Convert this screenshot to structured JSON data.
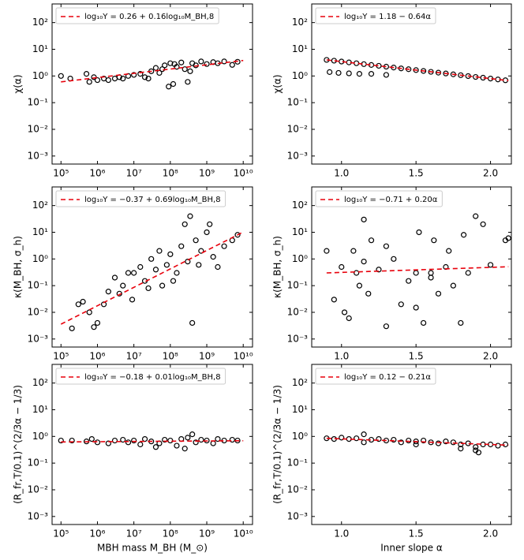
{
  "chart_data": [
    {
      "type": "scatter",
      "ylabel": "χ(α)",
      "log_x": true,
      "log_y": true,
      "legend": "upper left",
      "xlim": [
        57000,
        18000000000
      ],
      "ylim": [
        0.0005,
        500
      ],
      "xticks": [
        {
          "value": 100000,
          "label": "10⁵"
        },
        {
          "value": 1000000,
          "label": "10⁶"
        },
        {
          "value": 10000000,
          "label": "10⁷"
        },
        {
          "value": 100000000,
          "label": "10⁸"
        },
        {
          "value": 1000000000,
          "label": "10⁹"
        },
        {
          "value": 10000000000,
          "label": "10¹⁰"
        }
      ],
      "yticks": [
        {
          "value": 0.001,
          "label": "10⁻³"
        },
        {
          "value": 0.01,
          "label": "10⁻²"
        },
        {
          "value": 0.1,
          "label": "10⁻¹"
        },
        {
          "value": 1,
          "label": "10⁰"
        },
        {
          "value": 10,
          "label": "10¹"
        },
        {
          "value": 100,
          "label": "10²"
        }
      ],
      "series": [
        {
          "type": "scatter",
          "color": "#000000",
          "x": [
            100000,
            180000,
            500000,
            600000,
            800000,
            1000000,
            1500000,
            2000000,
            3000000,
            4000000,
            5000000,
            7000000,
            10000000,
            15000000,
            20000000,
            30000000,
            40000000,
            50000000,
            70000000,
            100000000,
            120000000,
            150000000,
            200000000,
            250000000,
            300000000,
            400000000,
            500000000,
            700000000,
            1000000000,
            1500000000,
            2000000000,
            3000000000,
            5000000000,
            7000000000,
            25000000,
            60000000,
            90000000,
            130000000,
            350000000
          ],
          "values": [
            1.0,
            0.8,
            1.2,
            0.6,
            0.9,
            0.7,
            0.8,
            0.7,
            0.8,
            0.9,
            0.8,
            1.0,
            1.1,
            1.2,
            0.9,
            1.5,
            2.0,
            1.3,
            2.5,
            3.0,
            0.5,
            2.2,
            3.2,
            1.8,
            0.6,
            3.0,
            2.5,
            3.5,
            2.8,
            3.3,
            3.0,
            3.5,
            2.6,
            3.4,
            0.8,
            1.8,
            0.4,
            2.8,
            1.5
          ]
        },
        {
          "type": "line",
          "name": "log₁₀Y = 0.26 + 0.16log₁₀M_BH,8",
          "color": "#e8000b",
          "x": [
            100000,
            10000000000
          ],
          "values": [
            0.6,
            3.8
          ]
        }
      ]
    },
    {
      "type": "scatter",
      "ylabel": "χ(α)",
      "log_x": false,
      "log_y": true,
      "legend": "upper left",
      "xlim": [
        0.8,
        2.14
      ],
      "ylim": [
        0.0005,
        500
      ],
      "xticks": [
        {
          "value": 1,
          "label": "1.0"
        },
        1.5,
        {
          "value": 2,
          "label": "2.0"
        }
      ],
      "yticks": [
        {
          "value": 0.001,
          "label": "10⁻³"
        },
        {
          "value": 0.01,
          "label": "10⁻²"
        },
        {
          "value": 0.1,
          "label": "10⁻¹"
        },
        {
          "value": 1,
          "label": "10⁰"
        },
        {
          "value": 10,
          "label": "10¹"
        },
        {
          "value": 100,
          "label": "10²"
        }
      ],
      "series": [
        {
          "type": "scatter",
          "color": "#000000",
          "x": [
            0.9,
            0.95,
            1.0,
            1.05,
            1.1,
            1.15,
            1.2,
            1.25,
            1.3,
            1.35,
            1.4,
            1.45,
            1.5,
            1.55,
            1.6,
            1.65,
            1.7,
            1.75,
            1.8,
            1.85,
            1.9,
            1.95,
            2.0,
            2.05,
            2.1,
            0.92,
            0.98,
            1.05,
            1.12,
            1.2,
            1.3
          ],
          "values": [
            4.0,
            3.74,
            3.47,
            3.22,
            3.0,
            2.78,
            2.58,
            2.4,
            2.23,
            2.07,
            1.92,
            1.79,
            1.66,
            1.54,
            1.43,
            1.33,
            1.24,
            1.15,
            1.07,
            0.99,
            0.92,
            0.86,
            0.8,
            0.74,
            0.69,
            1.4,
            1.3,
            1.25,
            1.2,
            1.2,
            1.1
          ]
        },
        {
          "type": "line",
          "name": "log₁₀Y = 1.18 − 0.64α",
          "color": "#e8000b",
          "x": [
            0.9,
            2.12
          ],
          "values": [
            4.0,
            0.67
          ]
        }
      ]
    },
    {
      "type": "scatter",
      "ylabel": "κ(M_BH, σ_h)",
      "log_x": true,
      "log_y": true,
      "legend": "upper left",
      "xlim": [
        57000,
        18000000000
      ],
      "ylim": [
        0.0005,
        500
      ],
      "xticks": [
        {
          "value": 100000,
          "label": "10⁵"
        },
        {
          "value": 1000000,
          "label": "10⁶"
        },
        {
          "value": 10000000,
          "label": "10⁷"
        },
        {
          "value": 100000000,
          "label": "10⁸"
        },
        {
          "value": 1000000000,
          "label": "10⁹"
        },
        {
          "value": 10000000000,
          "label": "10¹⁰"
        }
      ],
      "yticks": [
        {
          "value": 0.001,
          "label": "10⁻³"
        },
        {
          "value": 0.01,
          "label": "10⁻²"
        },
        {
          "value": 0.1,
          "label": "10⁻¹"
        },
        {
          "value": 1,
          "label": "10⁰"
        },
        {
          "value": 10,
          "label": "10¹"
        },
        {
          "value": 100,
          "label": "10²"
        }
      ],
      "series": [
        {
          "type": "scatter",
          "color": "#000000",
          "x": [
            200000,
            300000,
            400000,
            600000,
            800000,
            1000000,
            1500000,
            2000000,
            3000000,
            4000000,
            5000000,
            7000000,
            10000000,
            15000000,
            20000000,
            30000000,
            40000000,
            50000000,
            60000000,
            80000000,
            100000000,
            150000000,
            200000000,
            300000000,
            400000000,
            500000000,
            700000000,
            1000000000,
            1500000000,
            2000000000,
            3000000000,
            5000000000,
            7000000000,
            9000000,
            25000000,
            120000000,
            250000000,
            350000000,
            600000000,
            1200000000
          ],
          "values": [
            0.0025,
            0.02,
            0.025,
            0.01,
            0.0028,
            0.004,
            0.02,
            0.06,
            0.2,
            0.05,
            0.1,
            0.3,
            0.3,
            0.5,
            0.15,
            1.0,
            0.4,
            2.0,
            0.1,
            0.6,
            1.5,
            0.3,
            3.0,
            0.8,
            0.004,
            5.0,
            2.0,
            10,
            1.2,
            0.5,
            3.0,
            5.0,
            8.0,
            0.03,
            0.08,
            0.15,
            20,
            40,
            0.6,
            20
          ]
        },
        {
          "type": "line",
          "name": "log₁₀Y = −0.37 + 0.69log₁₀M_BH,8",
          "color": "#e8000b",
          "x": [
            100000,
            10000000000
          ],
          "values": [
            0.0036,
            10.2
          ]
        }
      ]
    },
    {
      "type": "scatter",
      "ylabel": "κ(M_BH, σ_h)",
      "log_x": false,
      "log_y": true,
      "legend": "upper left",
      "xlim": [
        0.8,
        2.14
      ],
      "ylim": [
        0.0005,
        500
      ],
      "xticks": [
        {
          "value": 1,
          "label": "1.0"
        },
        1.5,
        {
          "value": 2,
          "label": "2.0"
        }
      ],
      "yticks": [
        {
          "value": 0.001,
          "label": "10⁻³"
        },
        {
          "value": 0.01,
          "label": "10⁻²"
        },
        {
          "value": 0.1,
          "label": "10⁻¹"
        },
        {
          "value": 1,
          "label": "10⁰"
        },
        {
          "value": 10,
          "label": "10¹"
        },
        {
          "value": 100,
          "label": "10²"
        }
      ],
      "series": [
        {
          "type": "scatter",
          "color": "#000000",
          "x": [
            0.9,
            0.95,
            1.0,
            1.02,
            1.05,
            1.08,
            1.1,
            1.12,
            1.15,
            1.18,
            1.2,
            1.25,
            1.3,
            1.35,
            1.4,
            1.45,
            1.5,
            1.52,
            1.55,
            1.6,
            1.62,
            1.65,
            1.7,
            1.72,
            1.75,
            1.8,
            1.82,
            1.85,
            1.9,
            1.95,
            2.0,
            2.1,
            2.12,
            1.15,
            1.3,
            1.5,
            1.6
          ],
          "values": [
            2.0,
            0.03,
            0.5,
            0.01,
            0.006,
            2.0,
            0.3,
            0.1,
            30,
            0.05,
            5.0,
            0.4,
            0.003,
            1.0,
            0.02,
            0.15,
            0.3,
            10,
            0.004,
            0.3,
            5.0,
            0.05,
            0.5,
            2.0,
            0.1,
            0.004,
            8.0,
            0.3,
            40,
            20,
            0.6,
            5.0,
            6.0,
            0.8,
            3.0,
            0.015,
            0.2
          ]
        },
        {
          "type": "line",
          "name": "log₁₀Y = −0.71 + 0.20α",
          "color": "#e8000b",
          "x": [
            0.9,
            2.12
          ],
          "values": [
            0.3,
            0.51
          ]
        }
      ]
    },
    {
      "type": "scatter",
      "xlabel": "MBH mass M_BH (M_⊙)",
      "ylabel": "(R_fr,T/0.1)^(2/3α − 1/3)",
      "log_x": true,
      "log_y": true,
      "legend": "upper left",
      "xlim": [
        57000,
        18000000000
      ],
      "ylim": [
        0.0005,
        500
      ],
      "xticks": [
        {
          "value": 100000,
          "label": "10⁵"
        },
        {
          "value": 1000000,
          "label": "10⁶"
        },
        {
          "value": 10000000,
          "label": "10⁷"
        },
        {
          "value": 100000000,
          "label": "10⁸"
        },
        {
          "value": 1000000000,
          "label": "10⁹"
        },
        {
          "value": 10000000000,
          "label": "10¹⁰"
        }
      ],
      "yticks": [
        {
          "value": 0.001,
          "label": "10⁻³"
        },
        {
          "value": 0.01,
          "label": "10⁻²"
        },
        {
          "value": 0.1,
          "label": "10⁻¹"
        },
        {
          "value": 1,
          "label": "10⁰"
        },
        {
          "value": 10,
          "label": "10¹"
        },
        {
          "value": 100,
          "label": "10²"
        }
      ],
      "series": [
        {
          "type": "scatter",
          "color": "#000000",
          "x": [
            100000,
            200000,
            500000,
            700000,
            1000000,
            2000000,
            3000000,
            5000000,
            7000000,
            10000000,
            15000000,
            20000000,
            30000000,
            50000000,
            70000000,
            100000000,
            150000000,
            200000000,
            300000000,
            400000000,
            500000000,
            700000000,
            1000000000,
            1500000000,
            2000000000,
            3000000000,
            5000000000,
            7000000000,
            40000000,
            250000000
          ],
          "values": [
            0.7,
            0.7,
            0.65,
            0.8,
            0.6,
            0.55,
            0.7,
            0.75,
            0.6,
            0.7,
            0.5,
            0.8,
            0.65,
            0.55,
            0.75,
            0.7,
            0.45,
            0.8,
            0.9,
            1.2,
            0.6,
            0.75,
            0.7,
            0.55,
            0.8,
            0.7,
            0.75,
            0.7,
            0.4,
            0.35
          ]
        },
        {
          "type": "line",
          "name": "log₁₀Y = −0.18 + 0.01log₁₀M_BH,8",
          "color": "#e8000b",
          "x": [
            100000,
            10000000000
          ],
          "values": [
            0.62,
            0.69
          ]
        }
      ]
    },
    {
      "type": "scatter",
      "xlabel": "Inner slope α",
      "ylabel": "(R_fr,T/0.1)^(2/3α − 1/3)",
      "log_x": false,
      "log_y": true,
      "legend": "upper left",
      "xlim": [
        0.8,
        2.14
      ],
      "ylim": [
        0.0005,
        500
      ],
      "xticks": [
        {
          "value": 1,
          "label": "1.0"
        },
        1.5,
        {
          "value": 2,
          "label": "2.0"
        }
      ],
      "yticks": [
        {
          "value": 0.001,
          "label": "10⁻³"
        },
        {
          "value": 0.01,
          "label": "10⁻²"
        },
        {
          "value": 0.1,
          "label": "10⁻¹"
        },
        {
          "value": 1,
          "label": "10⁰"
        },
        {
          "value": 10,
          "label": "10¹"
        },
        {
          "value": 100,
          "label": "10²"
        }
      ],
      "series": [
        {
          "type": "scatter",
          "color": "#000000",
          "x": [
            0.9,
            0.95,
            1.0,
            1.05,
            1.1,
            1.15,
            1.2,
            1.25,
            1.3,
            1.35,
            1.4,
            1.45,
            1.5,
            1.55,
            1.6,
            1.65,
            1.7,
            1.75,
            1.8,
            1.85,
            1.9,
            1.92,
            1.95,
            2.0,
            2.05,
            2.1,
            1.15,
            1.5,
            1.8,
            1.9
          ],
          "values": [
            0.85,
            0.8,
            0.9,
            0.8,
            0.85,
            1.2,
            0.75,
            0.8,
            0.7,
            0.75,
            0.6,
            0.7,
            0.65,
            0.7,
            0.6,
            0.55,
            0.65,
            0.6,
            0.5,
            0.55,
            0.4,
            0.25,
            0.5,
            0.5,
            0.45,
            0.5,
            0.6,
            0.5,
            0.35,
            0.3
          ]
        },
        {
          "type": "line",
          "name": "log₁₀Y = 0.12 − 0.21α",
          "color": "#e8000b",
          "x": [
            0.9,
            2.12
          ],
          "values": [
            0.85,
            0.47
          ]
        }
      ]
    }
  ]
}
